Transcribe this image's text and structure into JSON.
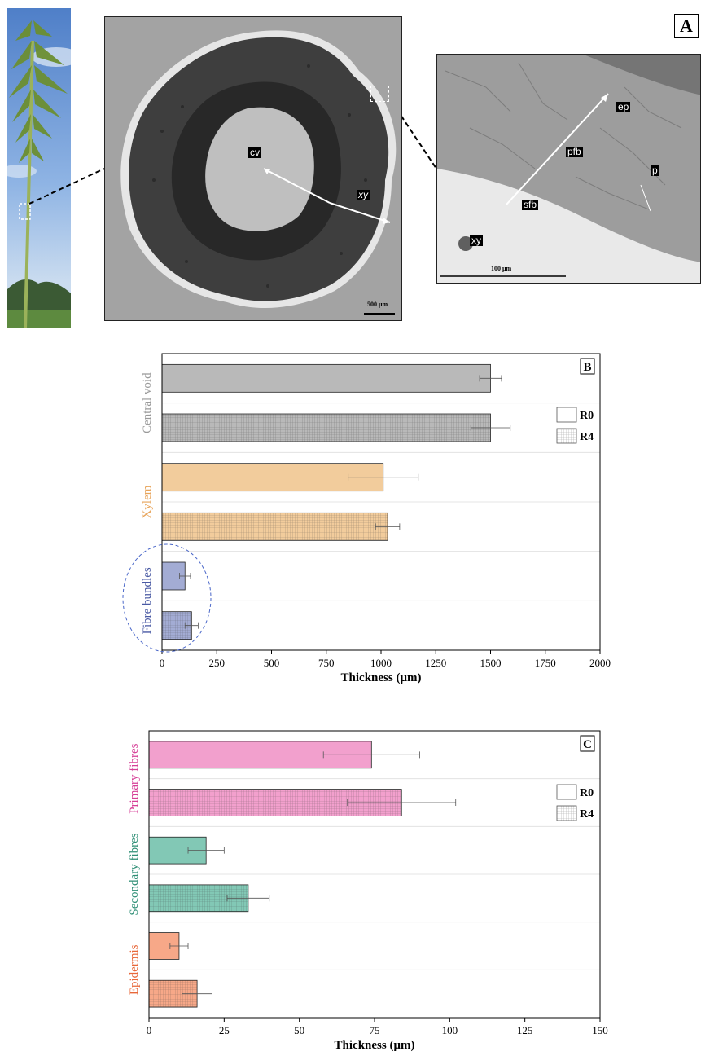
{
  "panel_a": {
    "letter": "A",
    "scale_bar_main": "500 μm",
    "scale_bar_zoom": "100 μm",
    "labels_main": {
      "cv": "cv",
      "xy": "xy"
    },
    "labels_zoom": {
      "ep": "ep",
      "pfb": "pfb",
      "p": "p",
      "sfb": "sfb",
      "xy": "xy"
    }
  },
  "chart_data": [
    {
      "type": "bar",
      "orientation": "horizontal",
      "panel": "B",
      "xlabel": "Thickness (μm)",
      "xlim": [
        0,
        2000
      ],
      "xticks": [
        0,
        250,
        500,
        750,
        1000,
        1250,
        1500,
        1750,
        2000
      ],
      "groups": [
        {
          "name": "Central void",
          "color": "#b9b9b9",
          "label_color": "#9a9a9a"
        },
        {
          "name": "Xylem",
          "color": "#f2cc9c",
          "label_color": "#e8a55c"
        },
        {
          "name": "Fibre bundles",
          "color": "#a3acd4",
          "label_color": "#4a5aa4"
        }
      ],
      "legend": [
        "R0",
        "R4"
      ],
      "legend_position": "top-right",
      "series": [
        {
          "name": "R0",
          "values": [
            1500,
            1010,
            105
          ],
          "errors": [
            50,
            160,
            25
          ]
        },
        {
          "name": "R4",
          "values": [
            1500,
            1030,
            135
          ],
          "errors": [
            90,
            55,
            30
          ]
        }
      ],
      "grid": false
    },
    {
      "type": "bar",
      "orientation": "horizontal",
      "panel": "C",
      "xlabel": "Thickness (μm)",
      "xlim": [
        0,
        150
      ],
      "xticks": [
        0,
        25,
        50,
        75,
        100,
        125,
        150
      ],
      "groups": [
        {
          "name": "Primary fibres",
          "color": "#f2a0cd",
          "label_color": "#d63f97"
        },
        {
          "name": "Secondary fibres",
          "color": "#82c8b5",
          "label_color": "#2f8f76"
        },
        {
          "name": "Epidermis",
          "color": "#f7a888",
          "label_color": "#e8683a"
        }
      ],
      "legend": [
        "R0",
        "R4"
      ],
      "legend_position": "top-right",
      "series": [
        {
          "name": "R0",
          "values": [
            74,
            19,
            10
          ],
          "errors": [
            16,
            6,
            3
          ]
        },
        {
          "name": "R4",
          "values": [
            84,
            33,
            16
          ],
          "errors": [
            18,
            7,
            5
          ]
        }
      ],
      "grid": false
    }
  ]
}
